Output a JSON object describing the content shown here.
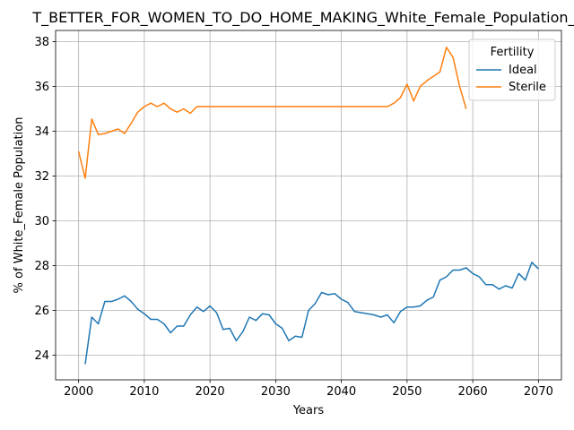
{
  "chart_data": {
    "type": "line",
    "title": "T_BETTER_FOR_WOMEN_TO_DO_HOME_MAKING_White_Female_Population_S",
    "xlabel": "Years",
    "ylabel": "% of White_Female Population",
    "xlim": [
      1996.5,
      2073.5
    ],
    "ylim": [
      22.9,
      38.5
    ],
    "xticks": [
      2000,
      2010,
      2020,
      2030,
      2040,
      2050,
      2060,
      2070
    ],
    "yticks": [
      24,
      26,
      28,
      30,
      32,
      34,
      36,
      38
    ],
    "xtick_labels": [
      "2000",
      "2010",
      "2020",
      "2030",
      "2040",
      "2050",
      "2060",
      "2070"
    ],
    "ytick_labels": [
      "24",
      "26",
      "28",
      "30",
      "32",
      "34",
      "36",
      "38"
    ],
    "grid": true,
    "legend": {
      "title": "Fertility",
      "position": "top-right"
    },
    "series": [
      {
        "name": "Ideal",
        "color": "#1f77b4",
        "x": [
          2001,
          2002,
          2003,
          2004,
          2005,
          2006,
          2007,
          2008,
          2009,
          2010,
          2011,
          2012,
          2013,
          2014,
          2015,
          2016,
          2017,
          2018,
          2019,
          2020,
          2021,
          2022,
          2023,
          2024,
          2025,
          2026,
          2027,
          2028,
          2029,
          2030,
          2031,
          2032,
          2033,
          2034,
          2035,
          2036,
          2037,
          2038,
          2039,
          2040,
          2041,
          2042,
          2043,
          2044,
          2045,
          2046,
          2047,
          2048,
          2049,
          2050,
          2051,
          2052,
          2053,
          2054,
          2055,
          2056,
          2057,
          2058,
          2059,
          2060,
          2061,
          2062,
          2063,
          2064,
          2065,
          2066,
          2067,
          2068,
          2069,
          2070
        ],
        "values": [
          23.6,
          25.7,
          25.4,
          26.4,
          26.4,
          26.5,
          26.65,
          26.4,
          26.05,
          25.85,
          25.6,
          25.6,
          25.4,
          25.0,
          25.3,
          25.3,
          25.8,
          26.15,
          25.95,
          26.2,
          25.9,
          25.15,
          25.2,
          24.65,
          25.05,
          25.7,
          25.55,
          25.85,
          25.8,
          25.4,
          25.2,
          24.65,
          24.85,
          24.8,
          26.0,
          26.3,
          26.8,
          26.7,
          26.75,
          26.5,
          26.35,
          25.95,
          25.9,
          25.85,
          25.8,
          25.7,
          25.8,
          25.45,
          25.95,
          26.15,
          26.15,
          26.2,
          26.45,
          26.6,
          27.35,
          27.5,
          27.8,
          27.8,
          27.9,
          27.65,
          27.5,
          27.15,
          27.15,
          26.95,
          27.1,
          27.0,
          27.65,
          27.35,
          28.15,
          27.85
        ]
      },
      {
        "name": "Sterile",
        "color": "#ff7f0e",
        "x": [
          2000,
          2001,
          2002,
          2003,
          2004,
          2005,
          2006,
          2007,
          2008,
          2009,
          2010,
          2011,
          2012,
          2013,
          2014,
          2015,
          2016,
          2017,
          2018,
          2019,
          2020,
          2021,
          2022,
          2023,
          2024,
          2025,
          2026,
          2027,
          2028,
          2029,
          2030,
          2031,
          2032,
          2033,
          2034,
          2035,
          2036,
          2037,
          2038,
          2039,
          2040,
          2041,
          2042,
          2043,
          2044,
          2045,
          2046,
          2047,
          2048,
          2049,
          2050,
          2051,
          2052,
          2053,
          2054,
          2055,
          2056,
          2057,
          2058,
          2059
        ],
        "values": [
          33.1,
          31.9,
          34.55,
          33.85,
          33.9,
          34.0,
          34.1,
          33.9,
          34.35,
          34.85,
          35.1,
          35.25,
          35.1,
          35.25,
          35.0,
          34.85,
          35.0,
          34.8,
          35.1,
          35.1,
          35.1,
          35.1,
          35.1,
          35.1,
          35.1,
          35.1,
          35.1,
          35.1,
          35.1,
          35.1,
          35.1,
          35.1,
          35.1,
          35.1,
          35.1,
          35.1,
          35.1,
          35.1,
          35.1,
          35.1,
          35.1,
          35.1,
          35.1,
          35.1,
          35.1,
          35.1,
          35.1,
          35.1,
          35.25,
          35.5,
          36.1,
          35.35,
          36.0,
          36.25,
          36.45,
          36.65,
          37.75,
          37.3,
          36.0,
          35.0
        ]
      }
    ]
  }
}
